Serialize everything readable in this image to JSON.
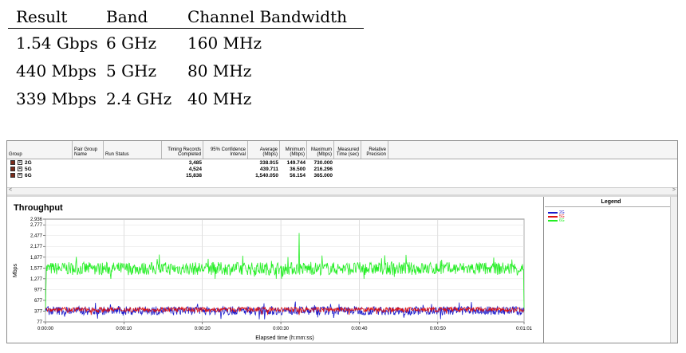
{
  "summary_table": {
    "headers": [
      "Result",
      "Band",
      "Channel Bandwidth"
    ],
    "rows": [
      [
        "1.54 Gbps",
        "6 GHz",
        "160 MHz"
      ],
      [
        "440 Mbps",
        "5 GHz",
        "80 MHz"
      ],
      [
        "339 Mbps",
        "2.4 GHz",
        "40 MHz"
      ]
    ]
  },
  "grid": {
    "headers": [
      "Group",
      "Pair Group Name",
      "Run Status",
      "Timing Records Completed",
      "95% Confidence Interval",
      "Average (Mbps)",
      "Minimum (Mbps)",
      "Maximum (Mbps)",
      "Measured Time (sec)",
      "Relative Precision"
    ],
    "rows": [
      {
        "group": "2G",
        "records": "3,485",
        "average": "338.915",
        "minimum": "149.744",
        "maximum": "730.000"
      },
      {
        "group": "5G",
        "records": "4,524",
        "average": "439.711",
        "minimum": "36.500",
        "maximum": "216.296"
      },
      {
        "group": "6G",
        "records": "15,838",
        "average": "1,540.050",
        "minimum": "56.154",
        "maximum": "365.000"
      }
    ],
    "scroll_left": "<",
    "scroll_right": ">"
  },
  "chart": {
    "title": "Throughput",
    "legend_title": "Legend"
  },
  "chart_data": {
    "type": "line",
    "title": "Throughput",
    "xlabel": "Elapsed time (h:mm:ss)",
    "ylabel": "Mbps",
    "x_ticks": [
      "0:00:00",
      "0:00:10",
      "0:00:20",
      "0:00:30",
      "0:00:40",
      "0:00:50",
      "0:01:01"
    ],
    "y_ticks": [
      77,
      377,
      677,
      977,
      1277,
      1577,
      1877,
      2177,
      2477,
      2777,
      2936
    ],
    "xlim": [
      0,
      61
    ],
    "ylim": [
      77,
      2936
    ],
    "grid": true,
    "legend_position": "right",
    "series": [
      {
        "name": "2G",
        "color": "#1a1acc",
        "mean": 390,
        "range": [
          149.744,
          730.0
        ]
      },
      {
        "name": "5G",
        "color": "#dd1111",
        "mean": 420,
        "range": [
          216,
          480
        ]
      },
      {
        "name": "6G",
        "color": "#22ee22",
        "mean": 1560,
        "range": [
          1277,
          2550
        ]
      }
    ]
  }
}
